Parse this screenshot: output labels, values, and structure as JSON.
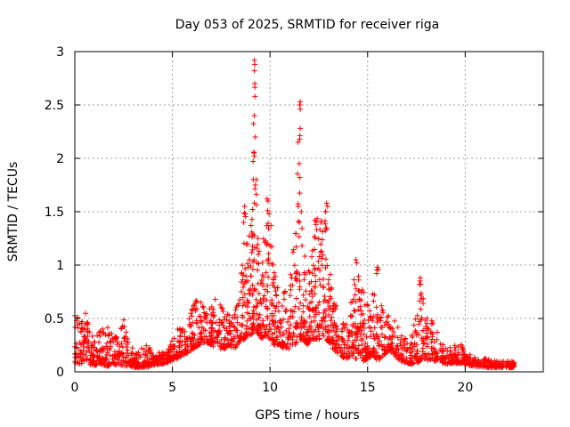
{
  "chart_data": {
    "type": "scatter",
    "title": "Day 053 of 2025, SRMTID for receiver riga",
    "xlabel": "GPS time / hours",
    "ylabel": "SRMTID / TECUs",
    "xlim": [
      0,
      24
    ],
    "ylim": [
      0,
      3
    ],
    "xticks": [
      0,
      5,
      10,
      15,
      20
    ],
    "yticks": [
      0,
      0.5,
      1,
      1.5,
      2,
      2.5,
      3
    ],
    "xtick_labels": [
      "0",
      "5",
      "10",
      "15",
      "20"
    ],
    "ytick_labels": [
      "0",
      "0.5",
      "1",
      "1.5",
      "2",
      "2.5",
      "3"
    ],
    "grid": true,
    "marker": "+",
    "series": [
      {
        "name": "SRMTID",
        "color": "#ff0000",
        "envelope_note": "approximate per-time-bin vertical range of the dense scatter (hours, low, high)",
        "envelope": [
          [
            0.0,
            0.08,
            0.55
          ],
          [
            0.3,
            0.07,
            0.5
          ],
          [
            0.5,
            0.1,
            0.62
          ],
          [
            0.8,
            0.06,
            0.4
          ],
          [
            1.0,
            0.06,
            0.3
          ],
          [
            1.3,
            0.07,
            0.45
          ],
          [
            1.6,
            0.05,
            0.4
          ],
          [
            1.9,
            0.06,
            0.52
          ],
          [
            2.2,
            0.06,
            0.3
          ],
          [
            2.5,
            0.05,
            0.5
          ],
          [
            2.8,
            0.05,
            0.28
          ],
          [
            3.1,
            0.04,
            0.2
          ],
          [
            3.4,
            0.04,
            0.22
          ],
          [
            3.7,
            0.04,
            0.3
          ],
          [
            4.0,
            0.06,
            0.18
          ],
          [
            4.3,
            0.07,
            0.2
          ],
          [
            4.6,
            0.08,
            0.22
          ],
          [
            4.9,
            0.1,
            0.25
          ],
          [
            5.2,
            0.12,
            0.4
          ],
          [
            5.5,
            0.15,
            0.45
          ],
          [
            5.8,
            0.18,
            0.5
          ],
          [
            6.1,
            0.22,
            0.65
          ],
          [
            6.4,
            0.25,
            0.7
          ],
          [
            6.7,
            0.28,
            0.72
          ],
          [
            7.0,
            0.25,
            0.7
          ],
          [
            7.3,
            0.22,
            0.68
          ],
          [
            7.6,
            0.2,
            0.6
          ],
          [
            7.9,
            0.25,
            0.55
          ],
          [
            8.2,
            0.2,
            0.55
          ],
          [
            8.5,
            0.3,
            0.85
          ],
          [
            8.7,
            0.3,
            1.55
          ],
          [
            8.9,
            0.35,
            1.2
          ],
          [
            9.1,
            0.35,
            1.8
          ],
          [
            9.2,
            0.4,
            2.92
          ],
          [
            9.4,
            0.35,
            1.3
          ],
          [
            9.6,
            0.3,
            1.1
          ],
          [
            9.8,
            0.35,
            1.6
          ],
          [
            10.0,
            0.3,
            1.5
          ],
          [
            10.2,
            0.25,
            1.0
          ],
          [
            10.4,
            0.25,
            0.8
          ],
          [
            10.7,
            0.22,
            0.75
          ],
          [
            11.0,
            0.2,
            0.9
          ],
          [
            11.3,
            0.25,
            1.3
          ],
          [
            11.5,
            0.3,
            2.53
          ],
          [
            11.7,
            0.3,
            1.3
          ],
          [
            11.9,
            0.25,
            1.1
          ],
          [
            12.1,
            0.3,
            1.0
          ],
          [
            12.3,
            0.3,
            1.45
          ],
          [
            12.5,
            0.3,
            1.5
          ],
          [
            12.7,
            0.35,
            1.4
          ],
          [
            12.9,
            0.3,
            1.58
          ],
          [
            13.1,
            0.25,
            1.0
          ],
          [
            13.3,
            0.2,
            0.7
          ],
          [
            13.6,
            0.15,
            0.5
          ],
          [
            13.9,
            0.12,
            0.45
          ],
          [
            14.2,
            0.15,
            0.7
          ],
          [
            14.4,
            0.12,
            1.05
          ],
          [
            14.6,
            0.15,
            0.9
          ],
          [
            14.8,
            0.1,
            0.75
          ],
          [
            15.0,
            0.12,
            0.7
          ],
          [
            15.3,
            0.15,
            0.8
          ],
          [
            15.5,
            0.1,
            0.98
          ],
          [
            15.8,
            0.15,
            0.55
          ],
          [
            16.1,
            0.2,
            0.75
          ],
          [
            16.4,
            0.15,
            0.5
          ],
          [
            16.8,
            0.08,
            0.35
          ],
          [
            17.2,
            0.07,
            0.3
          ],
          [
            17.5,
            0.08,
            0.55
          ],
          [
            17.7,
            0.1,
            0.9
          ],
          [
            18.0,
            0.1,
            0.5
          ],
          [
            18.3,
            0.12,
            0.55
          ],
          [
            18.6,
            0.08,
            0.35
          ],
          [
            19.0,
            0.07,
            0.22
          ],
          [
            19.4,
            0.08,
            0.25
          ],
          [
            19.7,
            0.08,
            0.28
          ],
          [
            20.0,
            0.07,
            0.2
          ],
          [
            20.4,
            0.05,
            0.15
          ],
          [
            20.8,
            0.05,
            0.13
          ],
          [
            21.2,
            0.04,
            0.12
          ],
          [
            21.6,
            0.04,
            0.1
          ],
          [
            22.0,
            0.04,
            0.1
          ],
          [
            22.4,
            0.04,
            0.1
          ],
          [
            22.5,
            0.05,
            0.09
          ]
        ],
        "peaks": [
          [
            9.2,
            2.92
          ],
          [
            9.22,
            2.88
          ],
          [
            9.2,
            2.82
          ],
          [
            9.22,
            2.7
          ],
          [
            9.23,
            2.58
          ],
          [
            9.2,
            2.4
          ],
          [
            9.25,
            2.2
          ],
          [
            9.18,
            2.05
          ],
          [
            9.2,
            2.02
          ],
          [
            9.3,
            1.8
          ],
          [
            9.25,
            1.75
          ],
          [
            9.2,
            1.58
          ],
          [
            11.55,
            2.53
          ],
          [
            11.52,
            2.5
          ],
          [
            11.55,
            2.46
          ],
          [
            11.55,
            2.28
          ],
          [
            11.52,
            2.18
          ],
          [
            11.5,
            1.95
          ],
          [
            11.53,
            1.82
          ],
          [
            11.45,
            1.55
          ],
          [
            11.6,
            1.5
          ],
          [
            8.7,
            1.55
          ],
          [
            8.72,
            1.48
          ],
          [
            8.65,
            1.4
          ],
          [
            9.85,
            1.62
          ],
          [
            9.9,
            1.6
          ],
          [
            9.95,
            1.48
          ],
          [
            12.3,
            1.42
          ],
          [
            12.35,
            1.38
          ],
          [
            12.9,
            1.58
          ],
          [
            12.95,
            1.55
          ],
          [
            12.85,
            1.5
          ],
          [
            14.4,
            1.05
          ],
          [
            14.45,
            1.02
          ],
          [
            15.5,
            0.98
          ],
          [
            15.55,
            0.96
          ],
          [
            17.7,
            0.88
          ],
          [
            17.72,
            0.82
          ]
        ]
      }
    ]
  }
}
